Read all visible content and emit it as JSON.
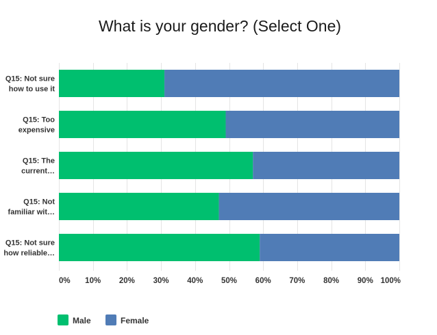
{
  "chart_data": {
    "type": "bar",
    "orientation": "horizontal",
    "stacked": true,
    "title": "What is your gender? (Select One)",
    "xlabel": "",
    "ylabel": "",
    "categories": [
      [
        "Q15: Not sure",
        "how to use it"
      ],
      [
        "Q15: Too",
        "expensive"
      ],
      [
        "Q15: The",
        "current…"
      ],
      [
        "Q15: Not",
        "familiar wit…"
      ],
      [
        "Q15: Not sure",
        "how reliable…"
      ]
    ],
    "series": [
      {
        "name": "Male",
        "color": "#00bf6f",
        "values": [
          31,
          49,
          57,
          47,
          59
        ]
      },
      {
        "name": "Female",
        "color": "#507cb6",
        "values": [
          69,
          51,
          43,
          53,
          41
        ]
      }
    ],
    "xlim": [
      0,
      100
    ],
    "xticks": [
      0,
      10,
      20,
      30,
      40,
      50,
      60,
      70,
      80,
      90,
      100
    ],
    "xtick_labels": [
      "0%",
      "10%",
      "20%",
      "30%",
      "40%",
      "50%",
      "60%",
      "70%",
      "80%",
      "90%",
      "100%"
    ],
    "grid": true,
    "legend": "bottom-left"
  }
}
